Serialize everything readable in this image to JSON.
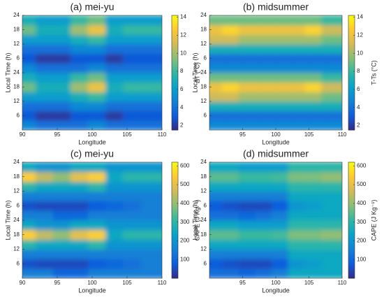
{
  "chart_data": [
    {
      "type": "heatmap",
      "title": "(a) mei-yu",
      "xlabel": "Longitude",
      "ylabel": "Local Time (h)",
      "zlabel": "ΔT (°C)",
      "x": [
        91.25,
        93.75,
        96.25,
        98.75,
        101.25,
        103.75,
        106.25,
        108.75
      ],
      "y": [
        2,
        6,
        10,
        14,
        18,
        22,
        26,
        30,
        34,
        38,
        42,
        46
      ],
      "values": [
        [
          5,
          4,
          4,
          4,
          5,
          4,
          4,
          4
        ],
        [
          3,
          2,
          2,
          3,
          3,
          2,
          3,
          3
        ],
        [
          4,
          4,
          4,
          5,
          5,
          4,
          4,
          4
        ],
        [
          6,
          6,
          6,
          7,
          8,
          6,
          6,
          6
        ],
        [
          9,
          7,
          7,
          10,
          12,
          7,
          8,
          8
        ],
        [
          7,
          6,
          6,
          8,
          9,
          6,
          6,
          6
        ],
        [
          5,
          4,
          4,
          4,
          5,
          4,
          4,
          4
        ],
        [
          3,
          2,
          2,
          3,
          3,
          2,
          3,
          3
        ],
        [
          4,
          4,
          4,
          5,
          5,
          4,
          4,
          4
        ],
        [
          6,
          6,
          6,
          7,
          8,
          6,
          6,
          6
        ],
        [
          9,
          7,
          7,
          10,
          12,
          7,
          8,
          8
        ],
        [
          7,
          6,
          6,
          8,
          9,
          6,
          6,
          6
        ]
      ],
      "xlim": [
        90,
        110
      ],
      "xticks": [
        90,
        95,
        100,
        105,
        110
      ],
      "ylim": [
        0,
        48
      ],
      "yticks": [
        6,
        12,
        18,
        24,
        {
          "value": 30,
          "label": "6"
        },
        {
          "value": 36,
          "label": "12"
        },
        {
          "value": 42,
          "label": "18"
        },
        {
          "value": 48,
          "label": "24"
        }
      ],
      "zlim": [
        1.5,
        14.2
      ],
      "zticks": [
        2,
        4,
        6,
        8,
        10,
        12,
        14
      ],
      "colormap": [
        "#352a87",
        "#0f5cdd",
        "#1481d6",
        "#06a4ca",
        "#2eb7a4",
        "#87bf77",
        "#d1bb59",
        "#fec832",
        "#f9fb0e"
      ]
    },
    {
      "type": "heatmap",
      "title": "(b) midsummer",
      "xlabel": "Longitude",
      "ylabel": "Local Time (h)",
      "zlabel": "T-Ts (°C)",
      "x": [
        91.25,
        93.75,
        96.25,
        98.75,
        101.25,
        103.75,
        106.25,
        108.75
      ],
      "y": [
        2,
        6,
        10,
        14,
        18,
        22,
        26,
        30,
        34,
        38,
        42,
        46
      ],
      "values": [
        [
          5,
          5,
          5,
          5,
          5,
          5,
          5,
          5
        ],
        [
          4,
          4,
          4,
          4,
          4,
          4,
          4,
          4
        ],
        [
          7,
          7,
          7,
          7,
          7,
          7,
          7,
          7
        ],
        [
          11,
          11,
          10,
          10,
          10,
          10,
          10,
          9
        ],
        [
          12,
          13,
          12,
          12,
          12,
          12,
          13,
          11
        ],
        [
          9,
          9,
          9,
          9,
          9,
          9,
          9,
          8
        ],
        [
          5,
          5,
          5,
          5,
          5,
          5,
          5,
          5
        ],
        [
          4,
          4,
          4,
          4,
          4,
          4,
          4,
          4
        ],
        [
          7,
          7,
          7,
          7,
          7,
          7,
          7,
          7
        ],
        [
          11,
          11,
          10,
          10,
          10,
          10,
          10,
          9
        ],
        [
          12,
          13,
          12,
          12,
          12,
          12,
          13,
          11
        ],
        [
          9,
          9,
          9,
          9,
          9,
          9,
          9,
          8
        ]
      ],
      "xlim": [
        90,
        110
      ],
      "xticks": [
        95,
        100,
        105,
        110
      ],
      "ylim": [
        0,
        48
      ],
      "yticks": [
        6,
        12,
        18,
        24,
        {
          "value": 30,
          "label": "6"
        },
        {
          "value": 36,
          "label": "12"
        },
        {
          "value": 42,
          "label": "18"
        },
        {
          "value": 48,
          "label": "24"
        }
      ],
      "zlim": [
        1.5,
        14.2
      ],
      "zticks": [
        2,
        4,
        6,
        8,
        10,
        12,
        14
      ],
      "colormap": [
        "#352a87",
        "#0f5cdd",
        "#1481d6",
        "#06a4ca",
        "#2eb7a4",
        "#87bf77",
        "#d1bb59",
        "#fec832",
        "#f9fb0e"
      ]
    },
    {
      "type": "heatmap",
      "title": "(c) mei-yu",
      "xlabel": "Longitude",
      "ylabel": "Local Time (h)",
      "zlabel": "CAPE (J Kg⁻¹)",
      "x": [
        91.25,
        93.75,
        96.25,
        98.75,
        101.25,
        103.75,
        106.25,
        108.75
      ],
      "y": [
        2,
        6,
        10,
        14,
        18,
        22,
        26,
        30,
        34,
        38,
        42,
        46
      ],
      "values": [
        [
          150,
          150,
          100,
          100,
          150,
          150,
          150,
          150
        ],
        [
          60,
          50,
          50,
          50,
          80,
          100,
          120,
          150
        ],
        [
          150,
          150,
          150,
          150,
          150,
          150,
          150,
          150
        ],
        [
          300,
          250,
          250,
          250,
          300,
          200,
          200,
          200
        ],
        [
          550,
          450,
          400,
          500,
          550,
          250,
          300,
          300
        ],
        [
          250,
          200,
          200,
          250,
          250,
          200,
          200,
          200
        ],
        [
          150,
          150,
          100,
          100,
          150,
          150,
          150,
          150
        ],
        [
          60,
          50,
          50,
          50,
          80,
          100,
          120,
          150
        ],
        [
          150,
          150,
          150,
          150,
          150,
          150,
          150,
          150
        ],
        [
          300,
          250,
          250,
          250,
          300,
          200,
          200,
          200
        ],
        [
          550,
          450,
          400,
          500,
          550,
          250,
          300,
          300
        ],
        [
          250,
          200,
          200,
          250,
          250,
          200,
          200,
          200
        ]
      ],
      "xlim": [
        90,
        110
      ],
      "xticks": [
        90,
        95,
        100,
        105,
        110
      ],
      "ylim": [
        0,
        48
      ],
      "yticks": [
        6,
        12,
        18,
        24,
        {
          "value": 30,
          "label": "6"
        },
        {
          "value": 36,
          "label": "12"
        },
        {
          "value": 42,
          "label": "18"
        },
        {
          "value": 48,
          "label": "24"
        }
      ],
      "zlim": [
        0,
        620
      ],
      "zticks": [
        100,
        200,
        300,
        400,
        500,
        600
      ],
      "colormap": [
        "#352a87",
        "#0f5cdd",
        "#1481d6",
        "#06a4ca",
        "#2eb7a4",
        "#87bf77",
        "#d1bb59",
        "#fec832",
        "#f9fb0e"
      ]
    },
    {
      "type": "heatmap",
      "title": "(d) midsummer",
      "xlabel": "Longitude",
      "ylabel": "Local Time (h)",
      "zlabel": "CAPE (J Kg⁻¹)",
      "x": [
        91.25,
        93.75,
        96.25,
        98.75,
        101.25,
        103.75,
        106.25,
        108.75
      ],
      "y": [
        2,
        6,
        10,
        14,
        18,
        22,
        26,
        30,
        34,
        38,
        42,
        46
      ],
      "values": [
        [
          120,
          120,
          100,
          120,
          150,
          250,
          250,
          250
        ],
        [
          80,
          60,
          50,
          50,
          80,
          200,
          220,
          250
        ],
        [
          150,
          150,
          150,
          150,
          150,
          250,
          250,
          250
        ],
        [
          250,
          250,
          250,
          250,
          250,
          300,
          300,
          300
        ],
        [
          350,
          350,
          320,
          320,
          330,
          380,
          380,
          400
        ],
        [
          250,
          250,
          220,
          220,
          220,
          300,
          300,
          300
        ],
        [
          120,
          120,
          100,
          120,
          150,
          250,
          250,
          250
        ],
        [
          80,
          60,
          50,
          50,
          80,
          200,
          220,
          250
        ],
        [
          150,
          150,
          150,
          150,
          150,
          250,
          250,
          250
        ],
        [
          250,
          250,
          250,
          250,
          250,
          300,
          300,
          300
        ],
        [
          350,
          350,
          320,
          320,
          330,
          380,
          380,
          400
        ],
        [
          250,
          250,
          220,
          220,
          220,
          300,
          300,
          300
        ]
      ],
      "xlim": [
        90,
        110
      ],
      "xticks": [
        95,
        100,
        105,
        110
      ],
      "ylim": [
        0,
        48
      ],
      "yticks": [
        6,
        12,
        18,
        24,
        {
          "value": 30,
          "label": "6"
        },
        {
          "value": 36,
          "label": "12"
        },
        {
          "value": 42,
          "label": "18"
        },
        {
          "value": 48,
          "label": "24"
        }
      ],
      "zlim": [
        0,
        620
      ],
      "zticks": [
        100,
        200,
        300,
        400,
        500,
        600
      ],
      "colormap": [
        "#352a87",
        "#0f5cdd",
        "#1481d6",
        "#06a4ca",
        "#2eb7a4",
        "#87bf77",
        "#d1bb59",
        "#fec832",
        "#f9fb0e"
      ]
    }
  ]
}
